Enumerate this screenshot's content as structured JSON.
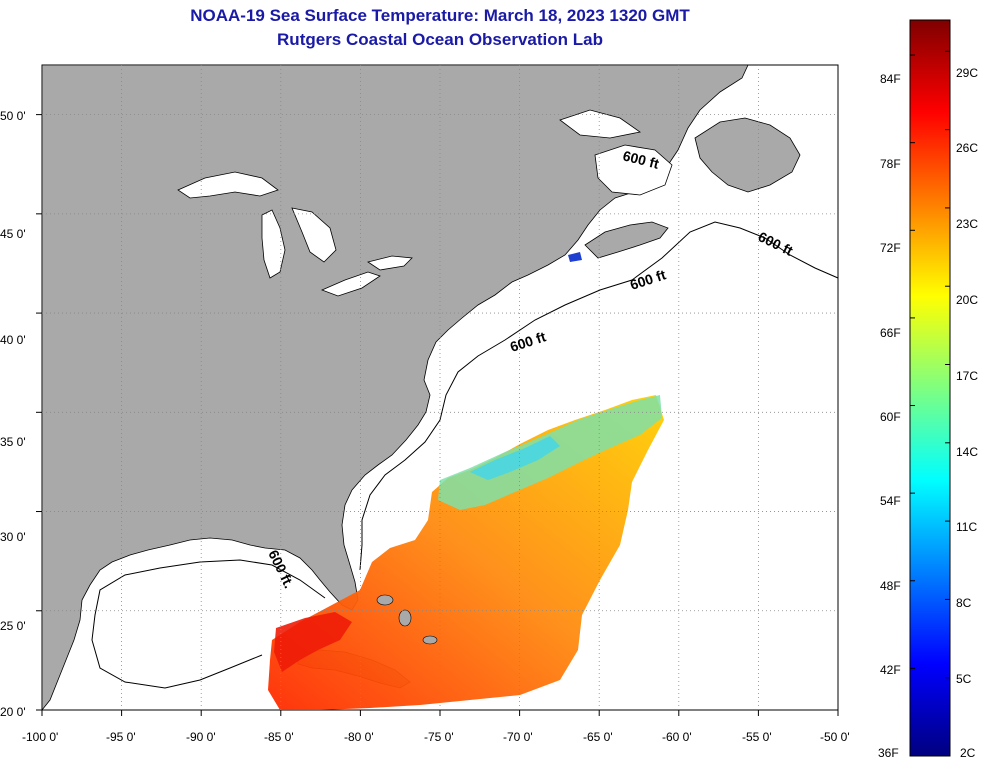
{
  "title": "NOAA-19 Sea Surface Temperature:  March 18, 2023 1320 GMT",
  "subtitle": "Rutgers Coastal Ocean Observation Lab",
  "map": {
    "lon_range": [
      -100,
      -50
    ],
    "lat_range": [
      20,
      52.5
    ],
    "x_ticks": [
      "-100 0'",
      "-95 0'",
      "-90 0'",
      "-85 0'",
      "-80 0'",
      "-75 0'",
      "-70 0'",
      "-65 0'",
      "-60 0'",
      "-55 0'",
      "-50 0'"
    ],
    "y_ticks": [
      "50 0'",
      "45 0'",
      "40 0'",
      "35 0'",
      "30 0'",
      "25 0'",
      "20 0'"
    ],
    "contour_labels": [
      "600 ft",
      "600 ft",
      "600 ft",
      "600 ft",
      "600 ft."
    ],
    "land_color": "#a9a9a9",
    "ocean_color": "#ffffff",
    "grid": "dotted"
  },
  "colorbar": {
    "fahrenheit_labels": [
      "84F",
      "78F",
      "72F",
      "66F",
      "60F",
      "54F",
      "48F",
      "42F",
      "36F"
    ],
    "celsius_labels": [
      "29C",
      "26C",
      "23C",
      "20C",
      "17C",
      "14C",
      "11C",
      "8C",
      "5C",
      "2C"
    ],
    "colors": [
      "#00007f",
      "#0000ff",
      "#007fff",
      "#00ffff",
      "#7fff7f",
      "#ffff00",
      "#ff7f00",
      "#ff0000",
      "#7f0000"
    ]
  }
}
